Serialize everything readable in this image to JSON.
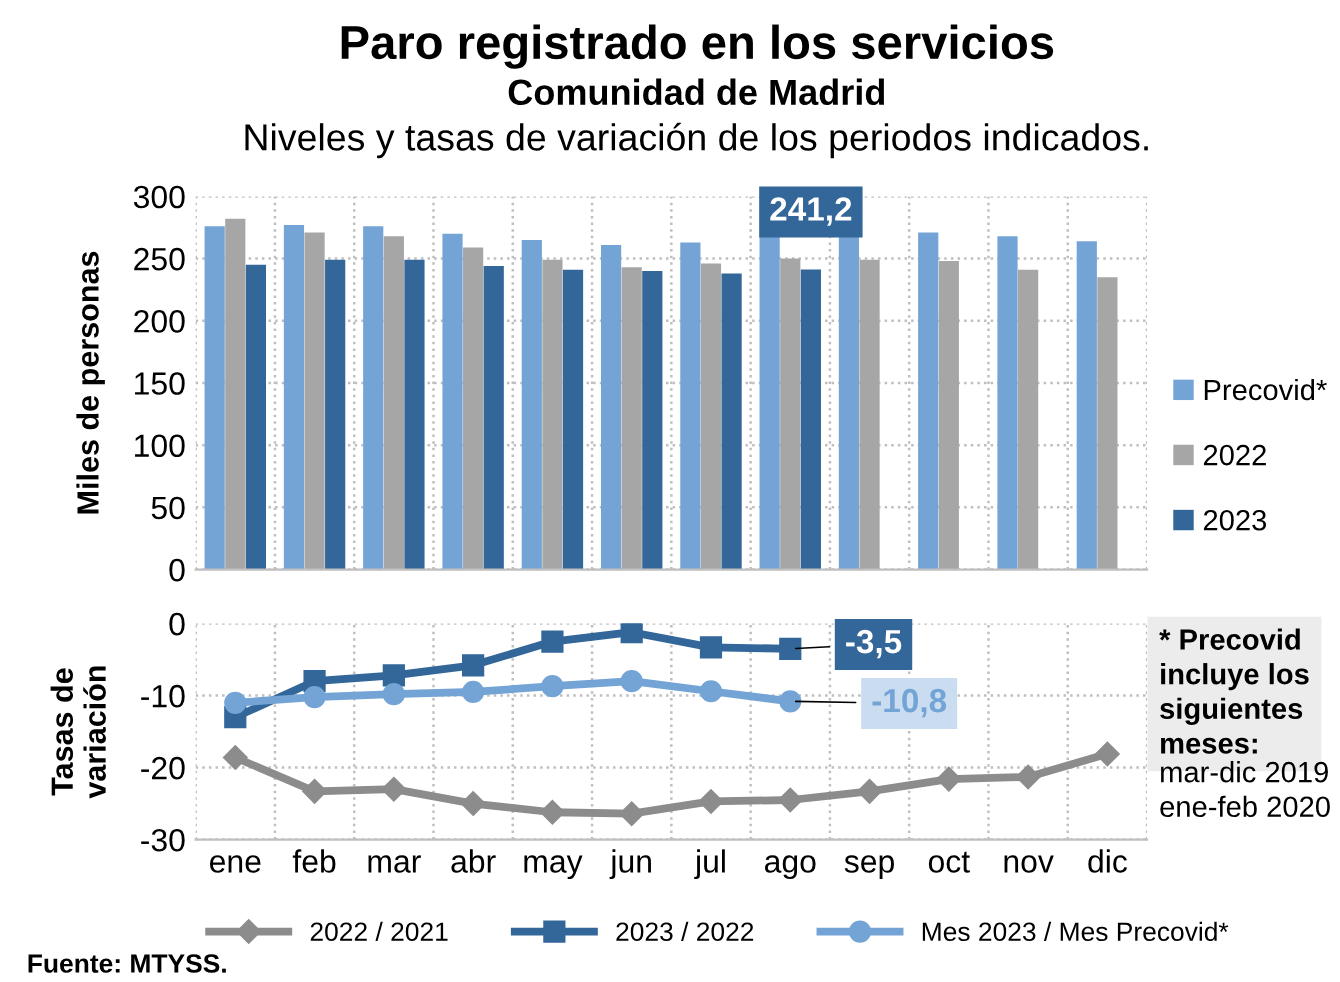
{
  "chart_data": [
    {
      "type": "bar",
      "title": "Paro registrado en los servicios",
      "subtitle": "Comunidad de Madrid",
      "ylabel": "Miles de personas",
      "annotations": [
        "Niveles y tasas de variación de los periodos indicados."
      ],
      "categories": [
        null,
        null,
        null,
        null,
        null,
        null,
        null,
        null,
        null,
        null,
        null,
        null
      ],
      "series": [
        {
          "name": "Precovid*",
          "color": "#74a4d6",
          "values": [
            276,
            277,
            276,
            270,
            265,
            261,
            263,
            268,
            270,
            271,
            268,
            264
          ]
        },
        {
          "name": "2022",
          "color": "#a6a6a6",
          "values": [
            282,
            271,
            268,
            259,
            249,
            243,
            246,
            250,
            249,
            248,
            241,
            235
          ]
        },
        {
          "name": "2023",
          "color": "#336699",
          "values": [
            245,
            249,
            249,
            244,
            241,
            240,
            238,
            241.2,
            null,
            null,
            null,
            null
          ],
          "value_labels": [
            null,
            null,
            null,
            null,
            null,
            null,
            null,
            "241,2",
            null,
            null,
            null,
            null
          ]
        }
      ],
      "ylim": [
        0,
        300
      ],
      "yticks": [
        0,
        50,
        100,
        150,
        200,
        250,
        300
      ],
      "grid": true,
      "legend": "right",
      "tick_labels": "y"
    },
    {
      "type": "line",
      "ylabel": "Tasas de\nvariación",
      "annotations": [
        "* Precovid\nincluye los\nsiguientes\nmeses:",
        "mar-dic 2019\nene-feb 2020",
        "Fuente: MTYSS."
      ],
      "categories": [
        "ene",
        "feb",
        "mar",
        "abr",
        "may",
        "jun",
        "jul",
        "ago",
        "sep",
        "oct",
        "nov",
        "dic"
      ],
      "series": [
        {
          "name": "2022 / 2021",
          "color": "#8c8c8c",
          "marker": "diamond",
          "values": [
            -18.6,
            -23.3,
            -23,
            -25,
            -26.2,
            -26.4,
            -24.7,
            -24.5,
            -23.3,
            -21.6,
            -21.3,
            -18.1
          ]
        },
        {
          "name": "2023 / 2022",
          "color": "#336699",
          "marker": "square",
          "values": [
            -13,
            -8,
            -7.2,
            -5.8,
            -2.5,
            -1.2,
            -3.3,
            -3.5,
            null,
            null,
            null,
            null
          ],
          "value_labels": [
            null,
            null,
            null,
            null,
            null,
            null,
            null,
            "-3,5",
            null,
            null,
            null,
            null
          ]
        },
        {
          "name": "Mes 2023 / Mes Precovid*",
          "color": "#74a4d6",
          "marker": "circle",
          "values": [
            -11,
            -10.2,
            -9.8,
            -9.5,
            -8.7,
            -8,
            -9.4,
            -10.8,
            null,
            null,
            null,
            null
          ],
          "value_labels": [
            null,
            null,
            null,
            null,
            null,
            null,
            null,
            "-10,8",
            null,
            null,
            null,
            null
          ]
        }
      ],
      "ylim": [
        -30,
        0
      ],
      "yticks": [
        -30,
        -20,
        -10,
        0
      ],
      "grid": true,
      "legend": "bottom",
      "line_style": "solid"
    }
  ]
}
